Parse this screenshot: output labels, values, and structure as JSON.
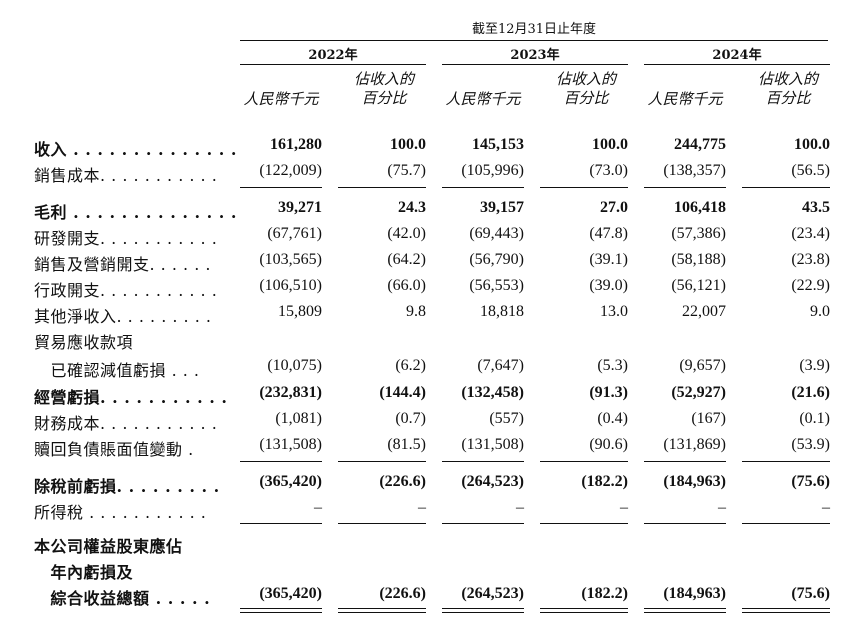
{
  "header": {
    "title": "截至12月31日止年度",
    "years": [
      "2022年",
      "2023年",
      "2024年"
    ],
    "col_rmb": "人民幣千元",
    "col_pct_line1": "佔收入的",
    "col_pct_line2": "百分比"
  },
  "rows": [
    {
      "label": "收入 . . . . . . . . . . . . . .",
      "bold": true,
      "values": [
        "161,280",
        "100.0",
        "145,153",
        "100.0",
        "244,775",
        "100.0"
      ]
    },
    {
      "label": "銷售成本. . . . . . . . . . .",
      "bold": false,
      "values": [
        "(122,009)",
        "(75.7)",
        "(105,996)",
        "(73.0)",
        "(138,357)",
        "(56.5)"
      ]
    },
    {
      "label": "毛利 . . . . . . . . . . . . . .",
      "bold": true,
      "values": [
        "39,271",
        "24.3",
        "39,157",
        "27.0",
        "106,418",
        "43.5"
      ]
    },
    {
      "label": "研發開支. . . . . . . . . . .",
      "bold": false,
      "values": [
        "(67,761)",
        "(42.0)",
        "(69,443)",
        "(47.8)",
        "(57,386)",
        "(23.4)"
      ]
    },
    {
      "label": "銷售及營銷開支. . . . . .",
      "bold": false,
      "values": [
        "(103,565)",
        "(64.2)",
        "(56,790)",
        "(39.1)",
        "(58,188)",
        "(23.8)"
      ]
    },
    {
      "label": "行政開支. . . . . . . . . . .",
      "bold": false,
      "values": [
        "(106,510)",
        "(66.0)",
        "(56,553)",
        "(39.0)",
        "(56,121)",
        "(22.9)"
      ]
    },
    {
      "label": "其他淨收入. . . . . . . . .",
      "bold": false,
      "values": [
        "15,809",
        "9.8",
        "18,818",
        "13.0",
        "22,007",
        "9.0"
      ]
    },
    {
      "label": "貿易應收款項",
      "bold": false,
      "values": [
        "",
        "",
        "",
        "",
        "",
        ""
      ]
    },
    {
      "label": "　已確認減值虧損 . . .",
      "bold": false,
      "values": [
        "(10,075)",
        "(6.2)",
        "(7,647)",
        "(5.3)",
        "(9,657)",
        "(3.9)"
      ]
    },
    {
      "label": "經營虧損. . . . . . . . . . .",
      "bold": true,
      "values": [
        "(232,831)",
        "(144.4)",
        "(132,458)",
        "(91.3)",
        "(52,927)",
        "(21.6)"
      ]
    },
    {
      "label": "財務成本. . . . . . . . . . .",
      "bold": false,
      "values": [
        "(1,081)",
        "(0.7)",
        "(557)",
        "(0.4)",
        "(167)",
        "(0.1)"
      ]
    },
    {
      "label": "贖回負債賬面值變動 .",
      "bold": false,
      "values": [
        "(131,508)",
        "(81.5)",
        "(131,508)",
        "(90.6)",
        "(131,869)",
        "(53.9)"
      ]
    },
    {
      "label": "除稅前虧損. . . . . . . . .",
      "bold": true,
      "values": [
        "(365,420)",
        "(226.6)",
        "(264,523)",
        "(182.2)",
        "(184,963)",
        "(75.6)"
      ]
    },
    {
      "label": "所得稅 . . . . . . . . . . .",
      "bold": false,
      "values": [
        "–",
        "–",
        "–",
        "–",
        "–",
        "–"
      ]
    },
    {
      "label": "本公司權益股東應佔",
      "bold": true,
      "values": [
        "",
        "",
        "",
        "",
        "",
        ""
      ]
    },
    {
      "label": "　年內虧損及",
      "bold": true,
      "values": [
        "",
        "",
        "",
        "",
        "",
        ""
      ]
    },
    {
      "label": "　綜合收益總額 . . . . .",
      "bold": true,
      "values": [
        "(365,420)",
        "(226.6)",
        "(264,523)",
        "(182.2)",
        "(184,963)",
        "(75.6)"
      ]
    }
  ]
}
